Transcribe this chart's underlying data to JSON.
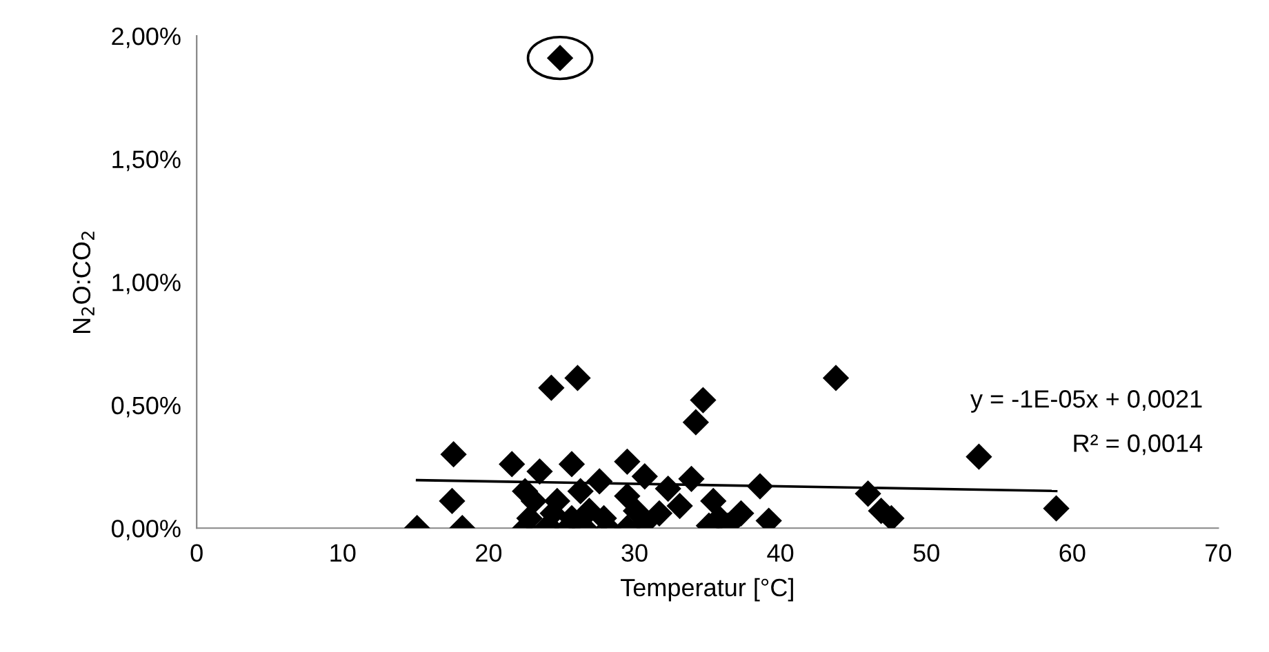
{
  "chart_data": {
    "type": "scatter",
    "xlabel": "Temperatur [°C]",
    "ylabel": "N$_{2}$O:CO$_{2}$",
    "xlim": [
      0,
      70
    ],
    "xticks": [
      0,
      10,
      20,
      30,
      40,
      50,
      60,
      70
    ],
    "ylim": [
      0,
      2
    ],
    "yticks": [
      {
        "value": 0,
        "label": "0,00%"
      },
      {
        "value": 0.5,
        "label": "0,50%"
      },
      {
        "value": 1,
        "label": "1,00%"
      },
      {
        "value": 1.5,
        "label": "1,50%"
      },
      {
        "value": 2,
        "label": "2,00%"
      }
    ],
    "grid": false,
    "legend": false,
    "series": [
      {
        "color": "#000000",
        "marker": "diamond",
        "x": [
          15.1,
          17.6,
          17.5,
          18.2,
          24.3,
          26.1,
          34.7,
          34.2,
          43.8,
          21.6,
          23.5,
          25.7,
          29.5,
          30.7,
          27.6,
          32.3,
          33.9,
          38.6,
          33.1,
          35.4,
          22.5,
          23.1,
          24.7,
          26.3,
          22.8,
          22.5,
          24.1,
          25.4,
          26.9,
          27.9,
          26.6,
          28.2,
          29.5,
          30.1,
          30.7,
          29.5,
          31.7,
          35.8,
          36.4,
          37.3,
          39.2,
          35.1,
          24.4,
          25.7,
          53.6,
          46.0,
          47.6,
          46.9,
          58.9,
          24.9
        ],
        "values": [
          0.0,
          0.3,
          0.11,
          0.0,
          0.57,
          0.61,
          0.52,
          0.43,
          0.61,
          0.26,
          0.23,
          0.26,
          0.27,
          0.21,
          0.19,
          0.16,
          0.2,
          0.17,
          0.09,
          0.11,
          0.15,
          0.11,
          0.11,
          0.15,
          0.04,
          0.0,
          0.01,
          0.0,
          0.07,
          0.04,
          0.0,
          0.0,
          0.13,
          0.07,
          0.02,
          0.0,
          0.06,
          0.04,
          0.01,
          0.06,
          0.03,
          0.01,
          0.06,
          0.04,
          0.29,
          0.14,
          0.04,
          0.07,
          0.08,
          1.91
        ]
      },
      {
        "type": "line",
        "color": "#000000",
        "line_style": "solid",
        "x": [
          15.1,
          58.9
        ],
        "values": [
          0.195,
          0.151
        ]
      }
    ],
    "annotations": [
      "y = -1E-05x + 0,0021",
      "R² = 0,0014"
    ]
  }
}
